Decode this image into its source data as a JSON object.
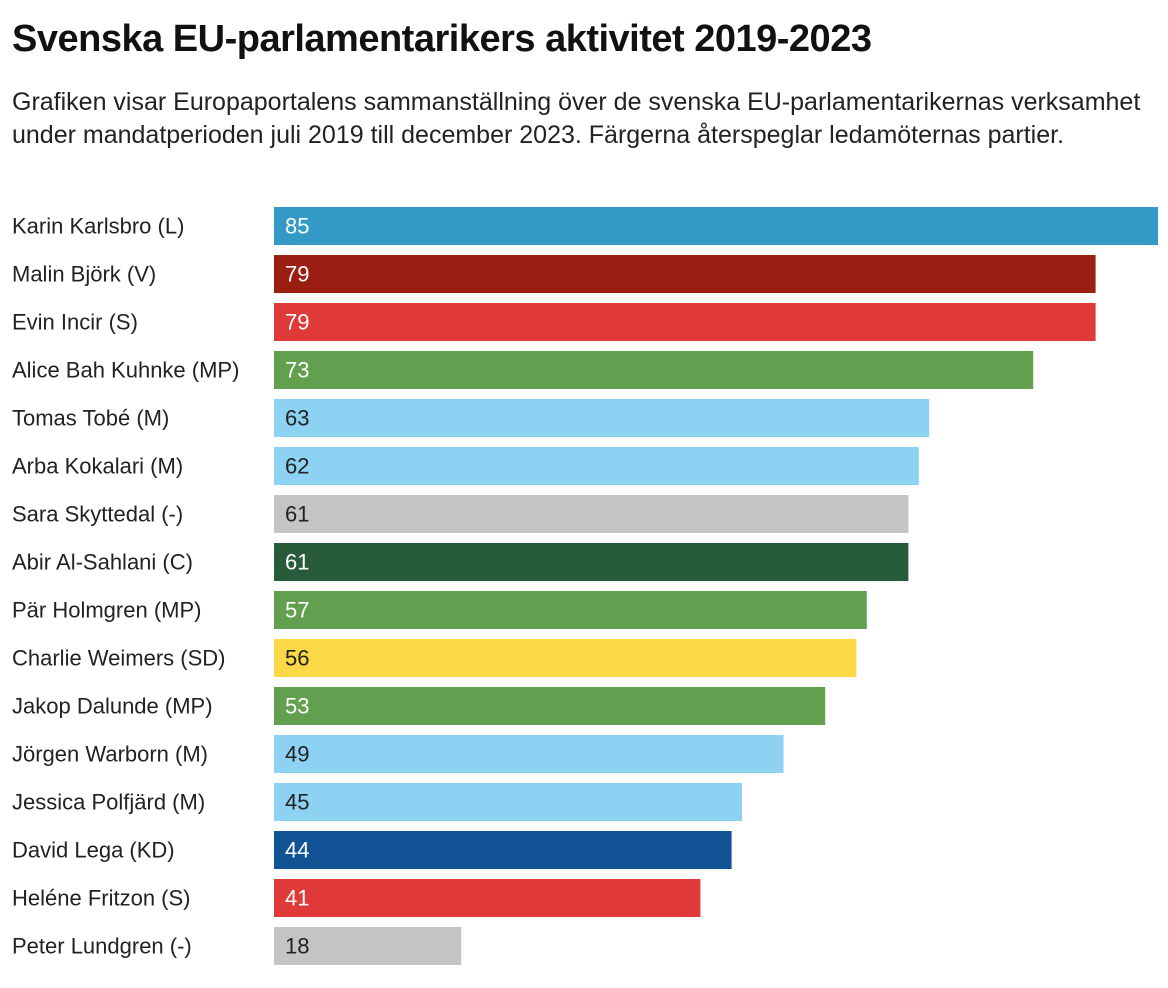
{
  "title": "Svenska EU-parlamentarikers aktivitet 2019-2023",
  "subtitle": "Grafiken visar Europaportalens sammanställning över de svenska EU-parlamentarikernas verksamhet under mandatperioden juli 2019 till december 2023. Färgerna återspeglar ledamöternas partier.",
  "chart_data": {
    "type": "bar",
    "orientation": "horizontal",
    "title": "Svenska EU-parlamentarikers aktivitet 2019-2023",
    "xlabel": "",
    "ylabel": "",
    "xlim": [
      0,
      85
    ],
    "grid": false,
    "legend": "none",
    "categories": [
      "Karin Karlsbro (L)",
      "Malin Björk (V)",
      "Evin Incir (S)",
      "Alice Bah Kuhnke (MP)",
      "Tomas Tobé (M)",
      "Arba Kokalari (M)",
      "Sara Skyttedal (-)",
      "Abir Al-Sahlani (C)",
      "Pär Holmgren (MP)",
      "Charlie Weimers (SD)",
      "Jakop Dalunde (MP)",
      "Jörgen Warborn (M)",
      "Jessica Polfjärd (M)",
      "David Lega (KD)",
      "Heléne Fritzon (S)",
      "Peter Lundgren (-)"
    ],
    "values": [
      85,
      79,
      79,
      73,
      63,
      62,
      61,
      61,
      57,
      56,
      53,
      49,
      45,
      44,
      41,
      18
    ],
    "colors": [
      "#3399c6",
      "#9b1e12",
      "#df3a38",
      "#629f4f",
      "#8dd2f3",
      "#8dd2f3",
      "#c4c4c4",
      "#275b3a",
      "#629f4f",
      "#fbd845",
      "#629f4f",
      "#8dd2f3",
      "#8dd2f3",
      "#115394",
      "#df3a38",
      "#c4c4c4"
    ],
    "label_colors": [
      "#ffffff",
      "#ffffff",
      "#ffffff",
      "#ffffff",
      "#222222",
      "#222222",
      "#222222",
      "#ffffff",
      "#ffffff",
      "#222222",
      "#ffffff",
      "#222222",
      "#222222",
      "#ffffff",
      "#ffffff",
      "#222222"
    ]
  }
}
